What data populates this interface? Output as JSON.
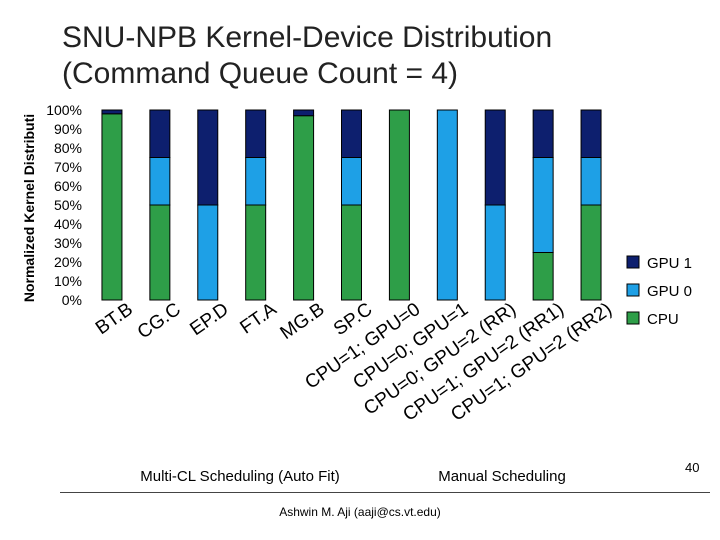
{
  "title": {
    "line1": "SNU-NPB Kernel-Device Distribution",
    "line2": "(Command Queue Count = 4)"
  },
  "footer": {
    "author": "Ashwin M. Aji (aaji@cs.vt.edu)",
    "page_number": "40"
  },
  "colors": {
    "cpu": "#2e9e48",
    "gpu0": "#1ea0e6",
    "gpu1": "#0d1f6e"
  },
  "chart_data": {
    "type": "bar",
    "stacked": true,
    "normalized": true,
    "ylabel": "Normalized Kernel Distributi",
    "ylim": [
      0,
      100
    ],
    "yticks": [
      "0%",
      "10%",
      "20%",
      "30%",
      "40%",
      "50%",
      "60%",
      "70%",
      "80%",
      "90%",
      "100%"
    ],
    "categories": [
      "BT.B",
      "CG.C",
      "EP.D",
      "FT.A",
      "MG.B",
      "SP.C",
      "CPU=1; GPU=0",
      "CPU=0; GPU=1",
      "CPU=0; GPU=2 (RR)",
      "CPU=1; GPU=2 (RR1)",
      "CPU=1; GPU=2 (RR2)"
    ],
    "series": [
      {
        "name": "CPU",
        "values": [
          98,
          50,
          0,
          50,
          97,
          50,
          100,
          0,
          0,
          25,
          50
        ]
      },
      {
        "name": "GPU 0",
        "values": [
          0,
          25,
          50,
          25,
          0,
          25,
          0,
          100,
          50,
          50,
          25
        ]
      },
      {
        "name": "GPU 1",
        "values": [
          2,
          25,
          50,
          25,
          3,
          25,
          0,
          0,
          50,
          25,
          25
        ]
      }
    ],
    "legend": [
      "GPU 1",
      "GPU 0",
      "CPU"
    ],
    "legend_position": "right",
    "group_labels": [
      "Multi-CL Scheduling (Auto Fit)",
      "Manual Scheduling"
    ]
  }
}
